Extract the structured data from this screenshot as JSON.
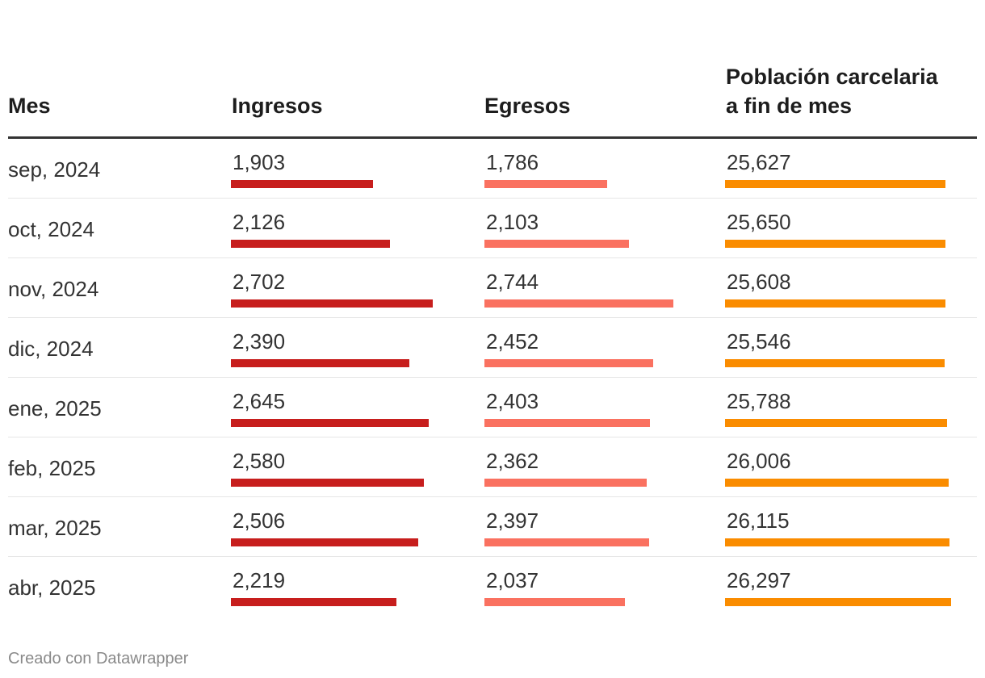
{
  "chart_data": {
    "type": "table",
    "columns": [
      "Mes",
      "Ingresos",
      "Egresos",
      "Población carcelaria a fin de mes"
    ],
    "rows": [
      {
        "mes": "sep, 2024",
        "ingresos": 1903,
        "egresos": 1786,
        "poblacion": 25627,
        "ingresos_label": "1,903",
        "egresos_label": "1,786",
        "poblacion_label": "25,627"
      },
      {
        "mes": "oct, 2024",
        "ingresos": 2126,
        "egresos": 2103,
        "poblacion": 25650,
        "ingresos_label": "2,126",
        "egresos_label": "2,103",
        "poblacion_label": "25,650"
      },
      {
        "mes": "nov, 2024",
        "ingresos": 2702,
        "egresos": 2744,
        "poblacion": 25608,
        "ingresos_label": "2,702",
        "egresos_label": "2,744",
        "poblacion_label": "25,608"
      },
      {
        "mes": "dic, 2024",
        "ingresos": 2390,
        "egresos": 2452,
        "poblacion": 25546,
        "ingresos_label": "2,390",
        "egresos_label": "2,452",
        "poblacion_label": "25,546"
      },
      {
        "mes": "ene, 2025",
        "ingresos": 2645,
        "egresos": 2403,
        "poblacion": 25788,
        "ingresos_label": "2,645",
        "egresos_label": "2,403",
        "poblacion_label": "25,788"
      },
      {
        "mes": "feb, 2025",
        "ingresos": 2580,
        "egresos": 2362,
        "poblacion": 26006,
        "ingresos_label": "2,580",
        "egresos_label": "2,362",
        "poblacion_label": "26,006"
      },
      {
        "mes": "mar, 2025",
        "ingresos": 2506,
        "egresos": 2397,
        "poblacion": 26115,
        "ingresos_label": "2,506",
        "egresos_label": "2,397",
        "poblacion_label": "26,115"
      },
      {
        "mes": "abr, 2025",
        "ingresos": 2219,
        "egresos": 2037,
        "poblacion": 26297,
        "ingresos_label": "2,219",
        "egresos_label": "2,037",
        "poblacion_label": "26,297"
      }
    ],
    "colors": {
      "ingresos": "#c71e1d",
      "egresos": "#fa7160",
      "poblacion": "#fa8c00"
    }
  },
  "footer": "Creado con Datawrapper"
}
